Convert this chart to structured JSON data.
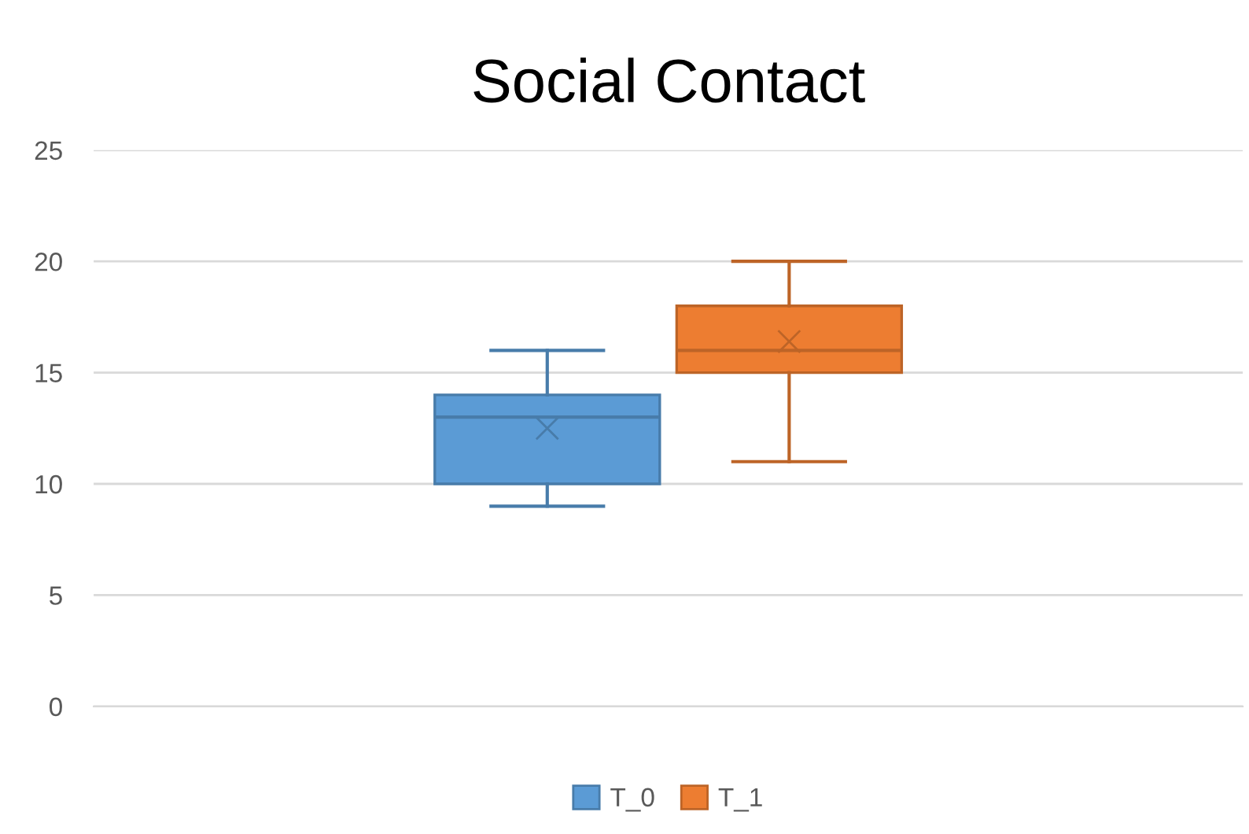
{
  "chart_data": {
    "type": "box",
    "title": "Social Contact",
    "categories": [
      null
    ],
    "series": [
      {
        "name": "T_0",
        "color": "#5b9bd5",
        "boxes": [
          {
            "low": 9,
            "q1": 10,
            "median": 13,
            "q3": 14,
            "high": 16,
            "mean": 12.5
          }
        ]
      },
      {
        "name": "T_1",
        "color": "#ed7d31",
        "boxes": [
          {
            "low": 11,
            "q1": 15,
            "median": 16,
            "q3": 18,
            "high": 20,
            "mean": 16.4
          }
        ]
      }
    ],
    "ylim": [
      0,
      25
    ],
    "yticks": [
      0,
      5,
      10,
      15,
      20,
      25
    ],
    "grid": "y",
    "legend": "bottom",
    "marker": "cross"
  }
}
